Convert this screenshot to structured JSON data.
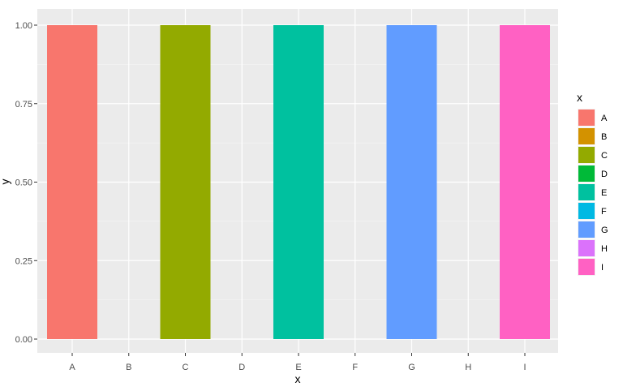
{
  "chart_data": {
    "type": "bar",
    "categories": [
      "A",
      "B",
      "C",
      "D",
      "E",
      "F",
      "G",
      "H",
      "I"
    ],
    "values": [
      1.0,
      null,
      1.0,
      null,
      1.0,
      null,
      1.0,
      null,
      1.0
    ],
    "xlabel": "x",
    "ylabel": "y",
    "ylim": [
      0,
      1
    ],
    "yticks": [
      "0.00",
      "0.25",
      "0.50",
      "0.75",
      "1.00"
    ],
    "grid": true,
    "background": "#ebebeb",
    "legend": {
      "title": "x",
      "placement": "right",
      "entries": [
        {
          "label": "A",
          "color": "#F8766D"
        },
        {
          "label": "B",
          "color": "#D39200"
        },
        {
          "label": "C",
          "color": "#93AA00"
        },
        {
          "label": "D",
          "color": "#00BA38"
        },
        {
          "label": "E",
          "color": "#00C19F"
        },
        {
          "label": "F",
          "color": "#00B9E3"
        },
        {
          "label": "G",
          "color": "#619CFF"
        },
        {
          "label": "H",
          "color": "#DB72FB"
        },
        {
          "label": "I",
          "color": "#FF61C3"
        }
      ]
    }
  }
}
